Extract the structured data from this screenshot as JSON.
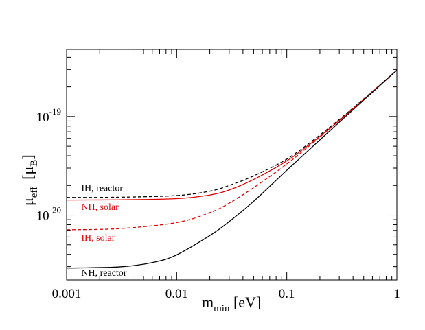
{
  "chart_data": {
    "type": "line",
    "xscale": "log",
    "yscale": "log",
    "xlim": [
      0.001,
      1
    ],
    "ylim": [
      2.2e-21,
      4.8e-19
    ],
    "xlabel": {
      "base": "m",
      "sub": "min",
      "unit": " [eV]"
    },
    "ylabel": {
      "base": "μ",
      "sub": "eff",
      "unit_base": "μ",
      "unit_sub": "B"
    },
    "xticks": [
      {
        "value": 0.001,
        "label": "0.001"
      },
      {
        "value": 0.01,
        "label": "0.01"
      },
      {
        "value": 0.1,
        "label": "0.1"
      },
      {
        "value": 1,
        "label": "1"
      }
    ],
    "yticks": [
      {
        "value": 1e-20,
        "base": "10",
        "exp": "-20"
      },
      {
        "value": 1e-19,
        "base": "10",
        "exp": "-19"
      }
    ],
    "series": [
      {
        "name": "IH, reactor",
        "color": "#000000",
        "dash": true,
        "x": [
          0.001,
          0.003,
          0.01,
          0.02,
          0.03,
          0.05,
          0.1,
          0.2,
          0.4,
          1.0
        ],
        "y": [
          1.51e-20,
          1.52e-20,
          1.58e-20,
          1.75e-20,
          2e-20,
          2.5e-20,
          3.7e-20,
          6.5e-20,
          1.22e-19,
          2.95e-19
        ]
      },
      {
        "name": "NH, solar",
        "color": "#e00000",
        "dash": false,
        "x": [
          0.001,
          0.003,
          0.01,
          0.02,
          0.03,
          0.05,
          0.1,
          0.2,
          0.4,
          1.0
        ],
        "y": [
          1.42e-20,
          1.43e-20,
          1.47e-20,
          1.6e-20,
          1.8e-20,
          2.3e-20,
          3.55e-20,
          6.3e-20,
          1.2e-19,
          2.95e-19
        ]
      },
      {
        "name": "IH, solar",
        "color": "#e00000",
        "dash": true,
        "x": [
          0.001,
          0.003,
          0.01,
          0.02,
          0.03,
          0.05,
          0.1,
          0.2,
          0.4,
          1.0
        ],
        "y": [
          7.1e-21,
          7.3e-21,
          8.4e-21,
          1.06e-20,
          1.32e-20,
          1.9e-20,
          3.3e-20,
          6.2e-20,
          1.2e-19,
          2.95e-19
        ]
      },
      {
        "name": "NH, reactor",
        "color": "#000000",
        "dash": false,
        "x": [
          0.001,
          0.003,
          0.006,
          0.01,
          0.02,
          0.03,
          0.05,
          0.1,
          0.2,
          0.4,
          1.0
        ],
        "y": [
          2.9e-21,
          2.98e-21,
          3.3e-21,
          3.95e-21,
          6.2e-21,
          8.6e-21,
          1.38e-20,
          2.85e-20,
          5.8e-20,
          1.17e-19,
          2.95e-19
        ]
      }
    ],
    "annotations": [
      {
        "text": "IH, reactor",
        "color": "#000000",
        "x": 0.00105,
        "y": 1.75e-20
      },
      {
        "text": "NH, solar",
        "color": "#e00000",
        "x": 0.00105,
        "y": 1.13e-20
      },
      {
        "text": "IH, solar",
        "color": "#e00000",
        "x": 0.00105,
        "y": 5.5e-21
      },
      {
        "text": "NH, reactor",
        "color": "#000000",
        "x": 0.00105,
        "y": 2.42e-21
      }
    ]
  }
}
